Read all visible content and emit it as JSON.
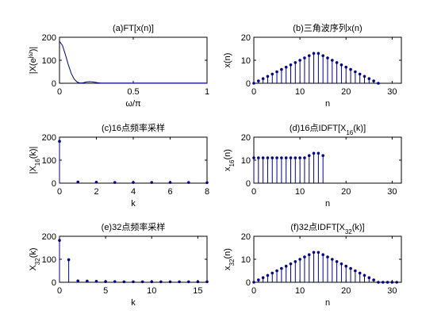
{
  "chart_data": [
    {
      "id": "a",
      "type": "line",
      "title": "(a)FT[x(n)]",
      "xlabel": "ω/π",
      "ylabel": "|X(e^jω)|",
      "xlim": [
        0,
        1
      ],
      "ylim": [
        0,
        200
      ],
      "xticks": [
        0,
        0.5,
        1
      ],
      "yticks": [
        0,
        100,
        200
      ],
      "x": [
        0,
        0.02,
        0.04,
        0.06,
        0.08,
        0.1,
        0.12,
        0.14,
        0.16,
        0.18,
        0.2,
        0.22,
        0.24,
        0.26,
        0.28,
        0.3,
        0.35,
        0.4,
        0.5,
        0.6,
        0.7,
        0.8,
        0.9,
        1.0
      ],
      "y": [
        182,
        165,
        125,
        80,
        42,
        18,
        5,
        1,
        2,
        5,
        7,
        6,
        4,
        2,
        1,
        1,
        1,
        1,
        1,
        1,
        1,
        1,
        1,
        1
      ]
    },
    {
      "id": "b",
      "type": "stem",
      "title": "(b)三角波序列x(n)",
      "xlabel": "n",
      "ylabel": "x(n)",
      "xlim": [
        0,
        32
      ],
      "ylim": [
        0,
        20
      ],
      "xticks": [
        0,
        10,
        20,
        30
      ],
      "yticks": [
        0,
        10,
        20
      ],
      "x": [
        0,
        1,
        2,
        3,
        4,
        5,
        6,
        7,
        8,
        9,
        10,
        11,
        12,
        13,
        14,
        15,
        16,
        17,
        18,
        19,
        20,
        21,
        22,
        23,
        24,
        25,
        26,
        27
      ],
      "y": [
        0,
        1,
        2,
        3,
        4,
        5,
        6,
        7,
        8,
        9,
        10,
        11,
        12,
        13,
        13,
        12,
        11,
        10,
        9,
        8,
        7,
        6,
        5,
        4,
        3,
        2,
        1,
        0
      ]
    },
    {
      "id": "c",
      "type": "stem",
      "title": "(c)16点频率采样",
      "xlabel": "k",
      "ylabel": "|X16(k)|",
      "xlim": [
        0,
        8
      ],
      "ylim": [
        0,
        200
      ],
      "xticks": [
        0,
        2,
        4,
        6,
        8
      ],
      "yticks": [
        0,
        100,
        200
      ],
      "x": [
        0,
        1,
        2,
        3,
        4,
        5,
        6,
        7,
        8
      ],
      "y": [
        182,
        5,
        4,
        3,
        3,
        3,
        3,
        3,
        2
      ]
    },
    {
      "id": "d",
      "type": "stem",
      "title": "(d)16点IDFT[X16(k)]",
      "xlabel": "n",
      "ylabel": "x16(n)",
      "xlim": [
        0,
        32
      ],
      "ylim": [
        0,
        20
      ],
      "xticks": [
        0,
        10,
        20,
        30
      ],
      "yticks": [
        0,
        10,
        20
      ],
      "x": [
        0,
        1,
        2,
        3,
        4,
        5,
        6,
        7,
        8,
        9,
        10,
        11,
        12,
        13,
        14,
        15
      ],
      "y": [
        11,
        11,
        11,
        11,
        11,
        11,
        11,
        11,
        11,
        11,
        11,
        11,
        12,
        13,
        13,
        12
      ]
    },
    {
      "id": "e",
      "type": "stem",
      "title": "(e)32点频率采样",
      "xlabel": "k",
      "ylabel": "X32(k)",
      "xlim": [
        0,
        16
      ],
      "ylim": [
        0,
        200
      ],
      "xticks": [
        0,
        5,
        10,
        15
      ],
      "yticks": [
        0,
        100,
        200
      ],
      "x": [
        0,
        1,
        2,
        3,
        4,
        5,
        6,
        7,
        8,
        9,
        10,
        11,
        12,
        13,
        14,
        15,
        16
      ],
      "y": [
        182,
        98,
        6,
        5,
        4,
        3,
        3,
        2,
        2,
        2,
        2,
        2,
        2,
        2,
        2,
        2,
        2
      ]
    },
    {
      "id": "f",
      "type": "stem",
      "title": "(f)32点IDFT[X32(k)]",
      "xlabel": "n",
      "ylabel": "x32(n)",
      "xlim": [
        0,
        32
      ],
      "ylim": [
        0,
        20
      ],
      "xticks": [
        0,
        10,
        20,
        30
      ],
      "yticks": [
        0,
        10,
        20
      ],
      "x": [
        0,
        1,
        2,
        3,
        4,
        5,
        6,
        7,
        8,
        9,
        10,
        11,
        12,
        13,
        14,
        15,
        16,
        17,
        18,
        19,
        20,
        21,
        22,
        23,
        24,
        25,
        26,
        27,
        28,
        29,
        30,
        31
      ],
      "y": [
        0,
        1,
        2,
        3,
        4,
        5,
        6,
        7,
        8,
        9,
        10,
        11,
        12,
        13,
        13,
        12,
        11,
        10,
        9,
        8,
        7,
        6,
        5,
        4,
        3,
        2,
        1,
        0,
        0,
        0,
        0,
        0
      ]
    }
  ],
  "colors": {
    "series": "#00008b",
    "axes": "#000000",
    "background": "#ffffff"
  }
}
